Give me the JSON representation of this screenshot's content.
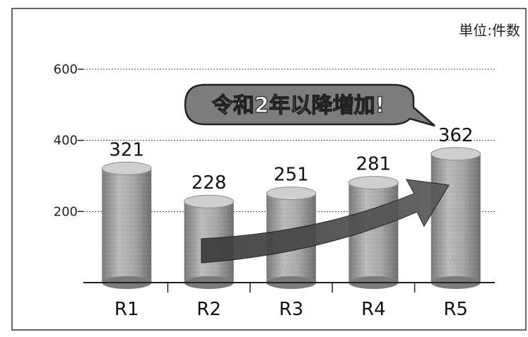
{
  "chart_data": {
    "type": "bar",
    "categories": [
      "R1",
      "R2",
      "R3",
      "R4",
      "R5"
    ],
    "values": [
      321,
      228,
      251,
      281,
      362
    ],
    "unit_label": "単位:件数",
    "annotation": "令和2年以降増加!",
    "ylim": [
      0,
      600
    ],
    "yticks": [
      200,
      400,
      600
    ],
    "ytick_labels": [
      "200",
      "400",
      "600"
    ],
    "grid": true,
    "legend": "none"
  },
  "colors": {
    "bar_main": "#9d9d9d",
    "bar_top": "#cfcfcf",
    "arrow": "#4a4a4a",
    "bubble_fill": "#777777",
    "grid": "#444444"
  }
}
